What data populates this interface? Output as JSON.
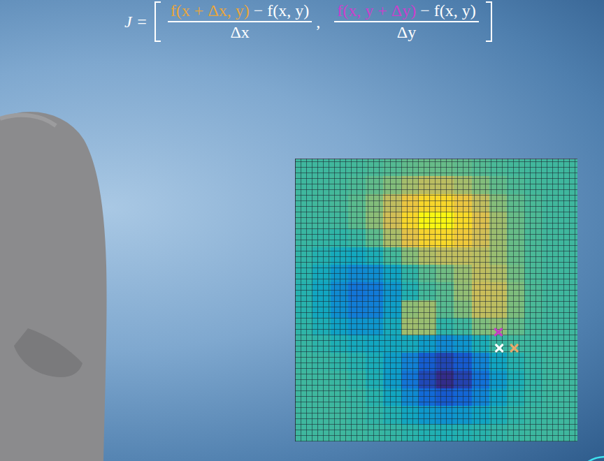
{
  "formula": {
    "lhs": "J =",
    "separator": ",",
    "terms": [
      {
        "colored": "f(x + Δx, y)",
        "color": "#e9a63c",
        "rest": " − f(x, y)",
        "denominator": "Δx"
      },
      {
        "colored": "f(x, y + Δy)",
        "color": "#cc3fcc",
        "rest": " − f(x, y)",
        "denominator": "Δy"
      }
    ]
  },
  "chart_data": {
    "type": "heatmap",
    "xlim": [
      0,
      16
    ],
    "ylim": [
      16,
      0
    ],
    "tick_labels": false,
    "color_range": [
      -1,
      1
    ],
    "cells": [
      [
        0,
        0,
        0.01,
        0.02,
        0.04,
        0.07,
        0.11,
        0.13,
        0.13,
        0.11,
        0.07,
        0.04,
        0.02,
        0.01,
        0,
        0
      ],
      [
        0,
        0.01,
        0.02,
        0.05,
        0.11,
        0.21,
        0.32,
        0.4,
        0.4,
        0.32,
        0.21,
        0.11,
        0.05,
        0.02,
        0.01,
        0
      ],
      [
        0,
        0.01,
        0.03,
        0.09,
        0.21,
        0.42,
        0.63,
        0.78,
        0.78,
        0.63,
        0.42,
        0.22,
        0.1,
        0.04,
        0.01,
        0
      ],
      [
        0,
        0,
        0.01,
        0.09,
        0.24,
        0.49,
        0.78,
        0.97,
        0.97,
        0.8,
        0.54,
        0.3,
        0.13,
        0.05,
        0.01,
        0
      ],
      [
        -0.02,
        -0.04,
        -0.06,
        -0.02,
        0.1,
        0.34,
        0.59,
        0.76,
        0.79,
        0.67,
        0.49,
        0.29,
        0.13,
        0.04,
        0.01,
        0
      ],
      [
        -0.05,
        -0.11,
        -0.19,
        -0.22,
        -0.15,
        0.02,
        0.23,
        0.36,
        0.41,
        0.42,
        0.39,
        0.28,
        0.13,
        0.04,
        0.01,
        0
      ],
      [
        -0.08,
        -0.2,
        -0.35,
        -0.45,
        -0.42,
        -0.25,
        -0.05,
        0.08,
        0.16,
        0.28,
        0.41,
        0.35,
        0.16,
        0.04,
        0.01,
        0
      ],
      [
        -0.1,
        -0.24,
        -0.44,
        -0.58,
        -0.55,
        -0.36,
        -0.12,
        0.02,
        0.08,
        0.26,
        0.46,
        0.43,
        0.2,
        0.05,
        0.01,
        0
      ],
      [
        -0.09,
        -0.22,
        -0.4,
        -0.53,
        -0.51,
        -0.29,
        0.25,
        0.3,
        0.08,
        0.2,
        0.42,
        0.4,
        0.19,
        0.04,
        0.01,
        0
      ],
      [
        -0.06,
        -0.15,
        -0.27,
        -0.37,
        -0.36,
        -0.19,
        0.3,
        0.28,
        -0.06,
        0,
        0.2,
        0.24,
        0.11,
        0.02,
        0,
        0
      ],
      [
        -0.03,
        -0.07,
        -0.14,
        -0.2,
        -0.23,
        -0.22,
        -0.2,
        -0.31,
        -0.45,
        -0.37,
        -0.16,
        -0.02,
        0,
        -0.01,
        -0.01,
        0
      ],
      [
        -0.01,
        -0.03,
        -0.06,
        -0.1,
        -0.17,
        -0.3,
        -0.5,
        -0.73,
        -0.86,
        -0.75,
        -0.49,
        -0.24,
        -0.1,
        -0.04,
        -0.01,
        0
      ],
      [
        0,
        -0.01,
        -0.02,
        -0.06,
        -0.14,
        -0.31,
        -0.58,
        -0.85,
        -0.99,
        -0.88,
        -0.61,
        -0.33,
        -0.14,
        -0.05,
        -0.01,
        0
      ],
      [
        0,
        0,
        -0.01,
        -0.03,
        -0.09,
        -0.23,
        -0.44,
        -0.65,
        -0.75,
        -0.68,
        -0.48,
        -0.26,
        -0.11,
        -0.04,
        -0.01,
        0
      ],
      [
        0,
        0,
        0,
        -0.02,
        -0.05,
        -0.12,
        -0.23,
        -0.34,
        -0.39,
        -0.35,
        -0.25,
        -0.14,
        -0.06,
        -0.02,
        -0.01,
        0
      ],
      [
        0,
        0,
        0,
        -0.01,
        -0.02,
        -0.04,
        -0.08,
        -0.12,
        -0.14,
        -0.12,
        -0.09,
        -0.05,
        -0.02,
        -0.01,
        0,
        0
      ]
    ],
    "marker": "x",
    "points": [
      {
        "x": 11.55,
        "y": 10.7,
        "color": "#ffffff"
      },
      {
        "x": 12.4,
        "y": 10.7,
        "color": "#e7a86b"
      },
      {
        "x": 11.5,
        "y": 9.8,
        "color": "#c43ec6"
      }
    ]
  }
}
